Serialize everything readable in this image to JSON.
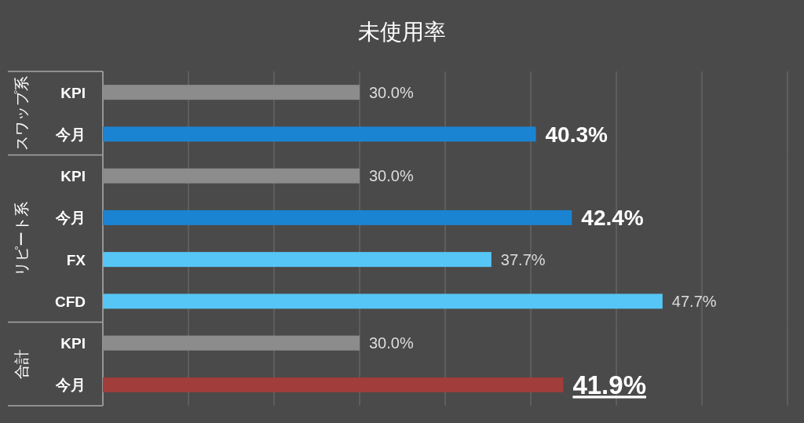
{
  "chart_data": [
    {
      "type": "bar",
      "orientation": "horizontal",
      "title": "未使用率",
      "ylabel": "スワップ系",
      "categories": [
        "KPI",
        "今月"
      ],
      "values": [
        30.0,
        40.3
      ],
      "colors": [
        "#8c8c8c",
        "#1b84d2"
      ],
      "value_labels": [
        "30.0%",
        "40.3%"
      ],
      "xlim": [
        15,
        55
      ],
      "xticks": [
        {
          "value": 15,
          "label": null
        },
        {
          "value": 20,
          "label": null
        },
        {
          "value": 25,
          "label": null
        },
        {
          "value": 30,
          "label": null
        },
        {
          "value": 35,
          "label": null
        },
        {
          "value": 40,
          "label": null
        },
        {
          "value": 45,
          "label": null
        },
        {
          "value": 50,
          "label": null
        },
        {
          "value": 55,
          "label": null
        }
      ],
      "grid": "x",
      "tick_labels": "y"
    },
    {
      "type": "bar",
      "orientation": "horizontal",
      "ylabel": "リピート系",
      "categories": [
        "KPI",
        "今月",
        "FX",
        "CFD"
      ],
      "values": [
        30.0,
        42.4,
        37.7,
        47.7
      ],
      "colors": [
        "#8c8c8c",
        "#1b84d2",
        "#56c6f6",
        "#56c6f6"
      ],
      "value_labels": [
        "30.0%",
        "42.4%",
        "37.7%",
        "47.7%"
      ],
      "xlim": [
        15,
        55
      ],
      "xticks": [
        {
          "value": 15,
          "label": null
        },
        {
          "value": 20,
          "label": null
        },
        {
          "value": 25,
          "label": null
        },
        {
          "value": 30,
          "label": null
        },
        {
          "value": 35,
          "label": null
        },
        {
          "value": 40,
          "label": null
        },
        {
          "value": 45,
          "label": null
        },
        {
          "value": 50,
          "label": null
        },
        {
          "value": 55,
          "label": null
        }
      ],
      "grid": "x",
      "tick_labels": "y"
    },
    {
      "type": "bar",
      "orientation": "horizontal",
      "ylabel": "合計",
      "categories": [
        "KPI",
        "今月"
      ],
      "values": [
        30.0,
        41.9
      ],
      "colors": [
        "#8c8c8c",
        "#a13d3b"
      ],
      "value_labels": [
        "30.0%",
        "41.9%"
      ],
      "xlim": [
        15,
        55
      ],
      "xticks": [
        {
          "value": 15,
          "label": null
        },
        {
          "value": 20,
          "label": null
        },
        {
          "value": 25,
          "label": null
        },
        {
          "value": 30,
          "label": null
        },
        {
          "value": 35,
          "label": null
        },
        {
          "value": 40,
          "label": null
        },
        {
          "value": 45,
          "label": null
        },
        {
          "value": 50,
          "label": null
        },
        {
          "value": 55,
          "label": null
        }
      ],
      "grid": "x",
      "tick_labels": "y"
    }
  ]
}
